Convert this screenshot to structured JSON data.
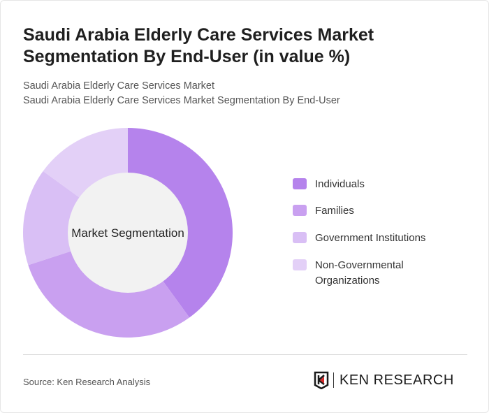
{
  "title": "Saudi Arabia Elderly Care Services Market Segmentation By End-User (in value %)",
  "subtitle1": "Saudi Arabia Elderly Care Services Market",
  "subtitle2": "Saudi Arabia Elderly Care Services Market Segmentation By End-User",
  "source": "Source: Ken Research Analysis",
  "logo_text": "KEN RESEARCH",
  "chart_data": {
    "type": "pie",
    "variant": "donut",
    "center_label": "Market Segmentation",
    "categories": [
      "Individuals",
      "Families",
      "Government Institutions",
      "Non-Governmental Organizations"
    ],
    "values": [
      40,
      30,
      15,
      15
    ],
    "colors": [
      "#b583ec",
      "#c9a0f0",
      "#d9bff5",
      "#e3d0f7"
    ],
    "legend_position": "right"
  }
}
